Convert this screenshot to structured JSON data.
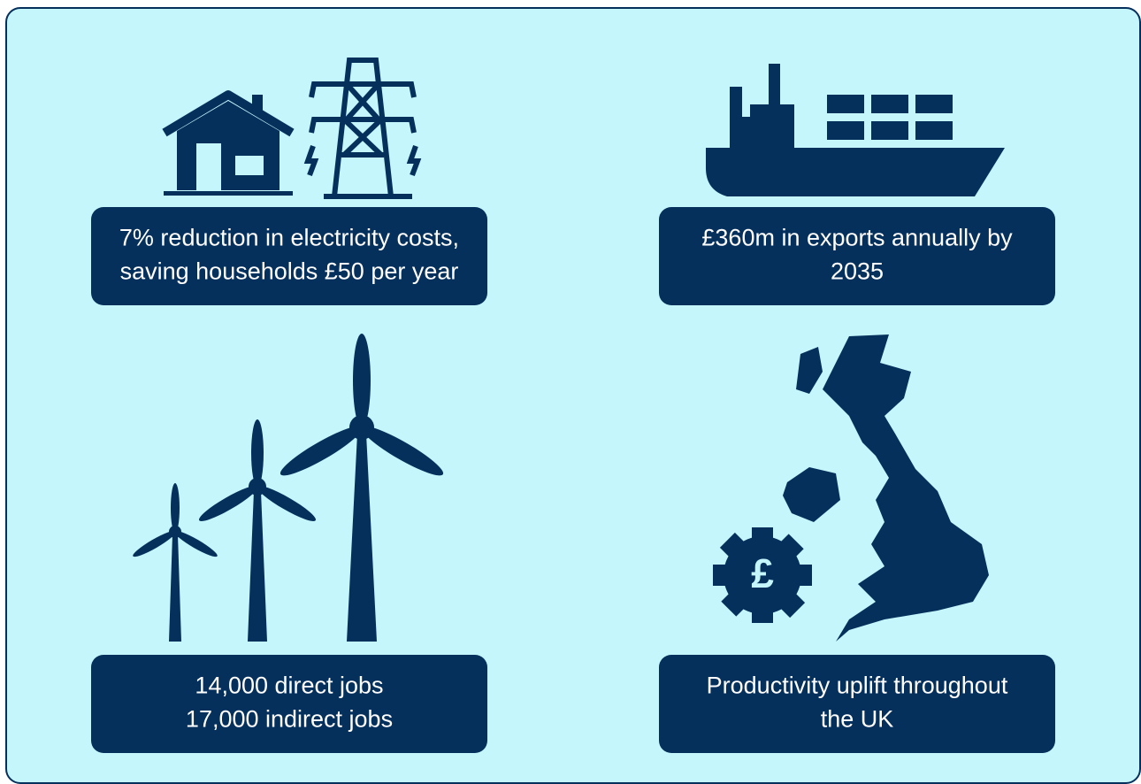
{
  "panels": [
    {
      "lines": [
        "7% reduction in electricity costs,",
        "saving households £50 per year"
      ]
    },
    {
      "lines": [
        "£360m in exports annually by",
        "2035"
      ]
    },
    {
      "lines": [
        "14,000 direct jobs",
        "17,000 indirect jobs"
      ]
    },
    {
      "lines": [
        "Productivity uplift throughout",
        "the UK"
      ]
    }
  ],
  "gear_symbol": "£"
}
